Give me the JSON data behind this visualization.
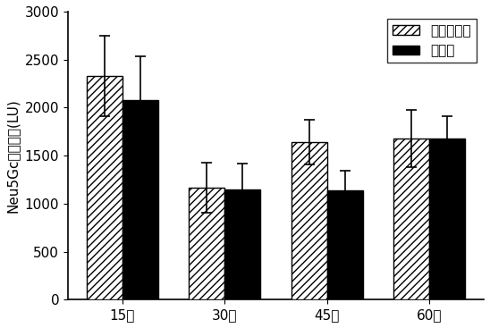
{
  "categories": [
    "15天",
    "30天",
    "45天",
    "60天"
  ],
  "control_values": [
    2330,
    1165,
    1640,
    1680
  ],
  "experiment_values": [
    2080,
    1150,
    1140,
    1680
  ],
  "control_errors": [
    420,
    260,
    230,
    300
  ],
  "experiment_errors": [
    450,
    270,
    200,
    230
  ],
  "ylabel": "Neu5Gc的峰面积(LU)",
  "ylim": [
    0,
    3000
  ],
  "yticks": [
    0,
    500,
    1000,
    1500,
    2000,
    2500,
    3000
  ],
  "legend_labels": [
    "空白对照组",
    "实验组"
  ],
  "bar_width": 0.35,
  "hatch_pattern": "////",
  "control_color": "white",
  "control_edge_color": "black",
  "experiment_color": "black",
  "experiment_edge_color": "black",
  "font_size": 11,
  "background_color": "white"
}
